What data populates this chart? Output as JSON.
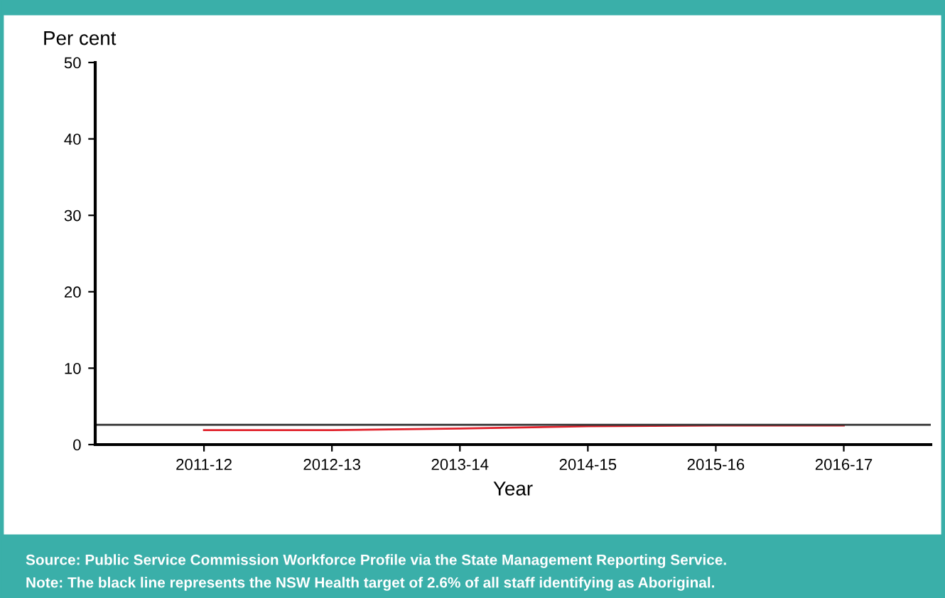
{
  "chart_data": {
    "type": "line",
    "ylabel": "Per cent",
    "xlabel": "Year",
    "categories": [
      "2011-12",
      "2012-13",
      "2013-14",
      "2014-15",
      "2015-16",
      "2016-17"
    ],
    "series": [
      {
        "color": "#e0202a",
        "values": [
          1.9,
          1.9,
          2.1,
          2.4,
          2.5,
          2.5
        ]
      }
    ],
    "ylim": [
      0,
      50
    ],
    "yticks": [
      0,
      10,
      20,
      30,
      40,
      50
    ],
    "grid": false,
    "legend": false,
    "marker": "none",
    "line_style": "solid",
    "ref_lines": [
      {
        "axis": "y",
        "value": 2.6,
        "color": "#333333",
        "line_style": "solid"
      }
    ],
    "annotations": [
      "Source: Public Service Commission Workforce Profile via the State Management Reporting Service.",
      "Note: The black line represents the NSW Health target of 2.6% of all staff identifying as Aboriginal."
    ]
  }
}
